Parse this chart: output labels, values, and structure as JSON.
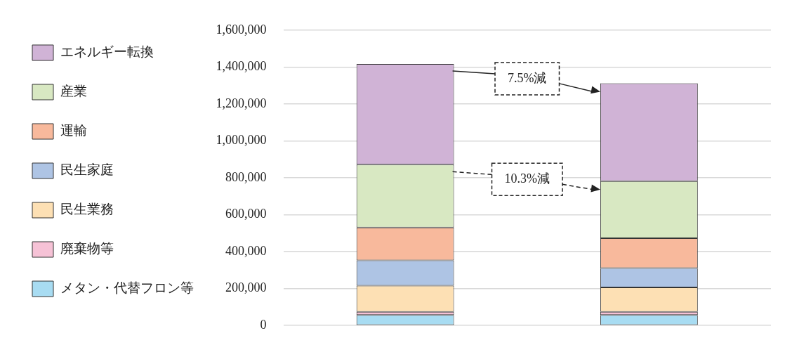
{
  "chart_data": {
    "type": "bar",
    "stacked": true,
    "categories": [
      null,
      null
    ],
    "series": [
      {
        "name": "メタン・代替フロン等",
        "color": "#a8dcf2",
        "values": [
          57000,
          57000
        ]
      },
      {
        "name": "廃棄物等",
        "color": "#f6c2d6",
        "values": [
          17000,
          17000
        ]
      },
      {
        "name": "民生業務",
        "color": "#fde0b4",
        "values": [
          142000,
          132000
        ]
      },
      {
        "name": "民生家庭",
        "color": "#aec4e4",
        "values": [
          137000,
          105000
        ]
      },
      {
        "name": "運輸",
        "color": "#f8b99c",
        "values": [
          178000,
          162000
        ]
      },
      {
        "name": "産業",
        "color": "#d8e8c2",
        "values": [
          340000,
          309000
        ]
      },
      {
        "name": "エネルギー転換",
        "color": "#d0b3d6",
        "values": [
          546000,
          530000
        ]
      }
    ],
    "ylim": [
      0,
      1600000
    ],
    "yticks": [
      0,
      {
        "value": 200000,
        "label": "200,000"
      },
      {
        "value": 400000,
        "label": "400,000"
      },
      {
        "value": 600000,
        "label": "600,000"
      },
      {
        "value": 800000,
        "label": "800,000"
      },
      {
        "value": 1000000,
        "label": "1,000,000"
      },
      {
        "value": 1200000,
        "label": "1,200,000"
      },
      {
        "value": 1400000,
        "label": "1,400,000"
      },
      {
        "value": 1600000,
        "label": "1,600,000"
      }
    ],
    "grid": "y",
    "legend": "left",
    "annotations": [
      "7.5%減",
      "10.3%減"
    ]
  }
}
